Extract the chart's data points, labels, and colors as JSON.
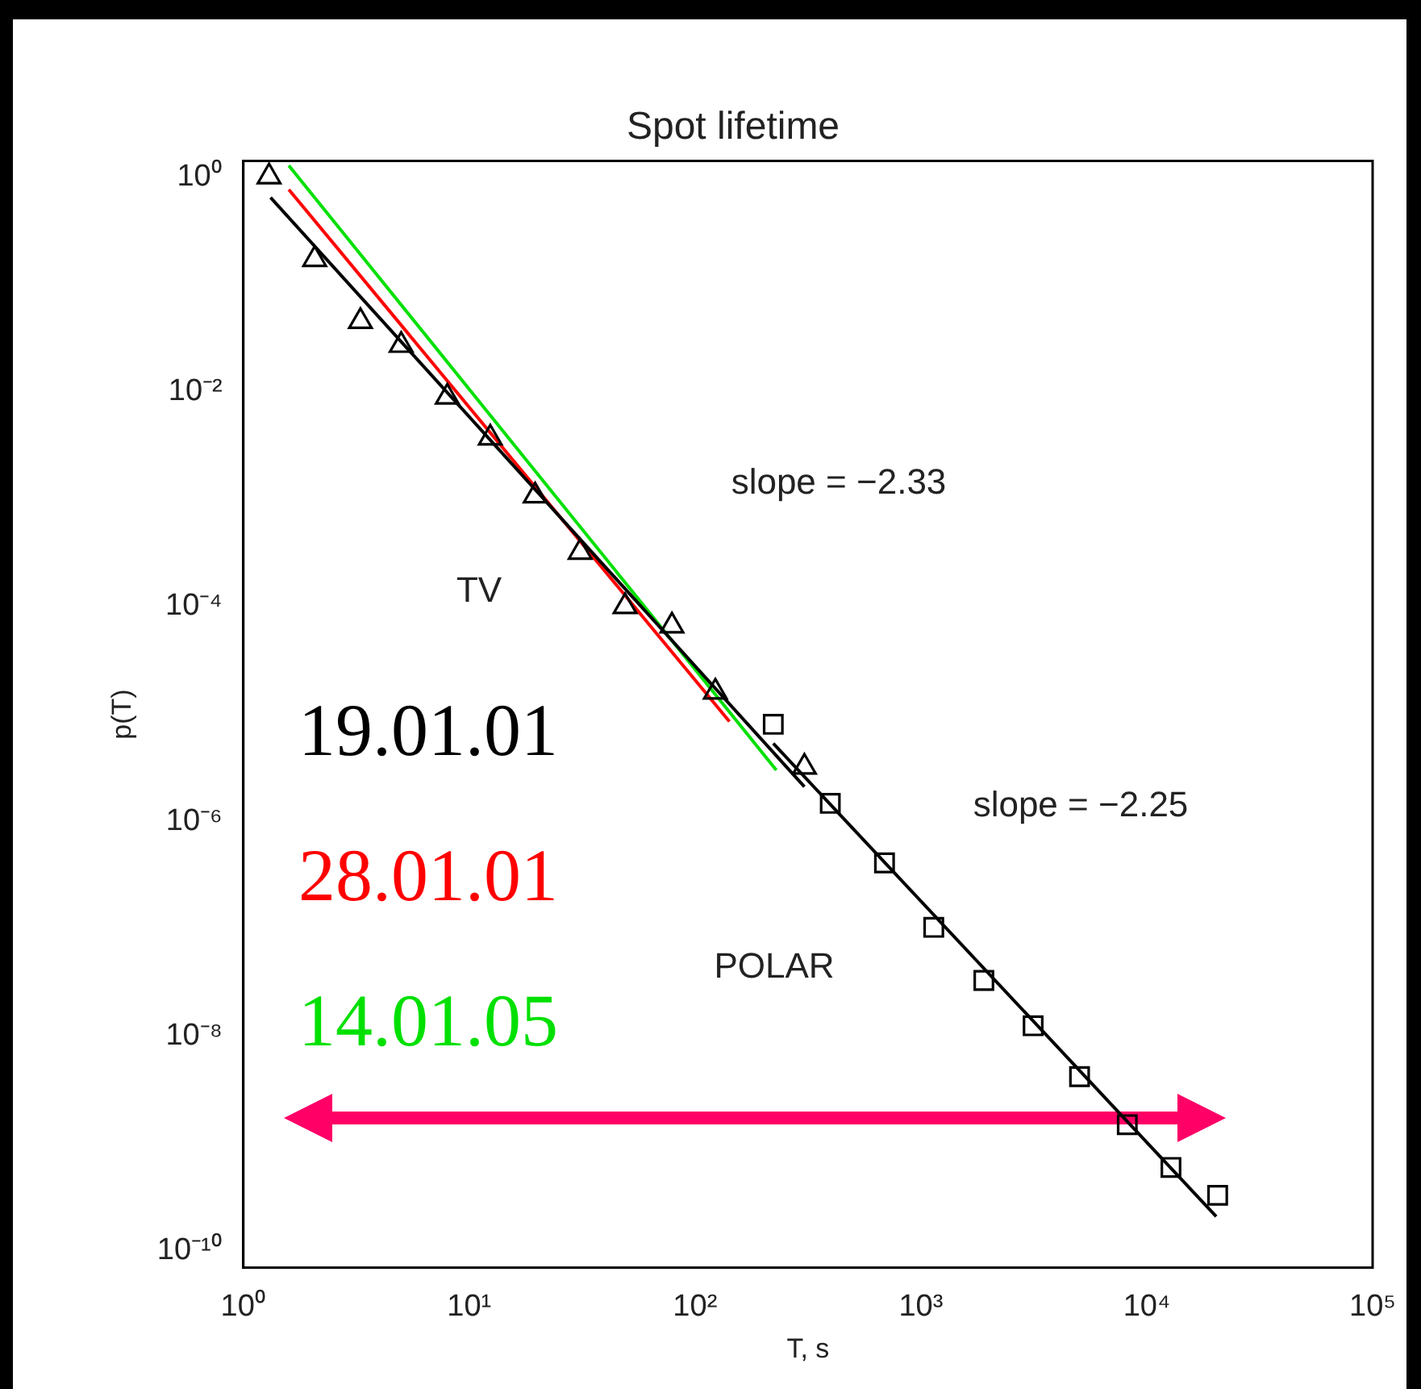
{
  "chart_data": {
    "type": "scatter",
    "title": "Spot lifetime",
    "xlabel": "T, s",
    "ylabel": "p(T)",
    "log": "xy",
    "grid": false,
    "legend": "left",
    "xlim": [
      1,
      100000
    ],
    "xticks": [
      {
        "value": 1,
        "label": "10⁰"
      },
      {
        "value": 10,
        "label": "10¹"
      },
      {
        "value": 100,
        "label": "10²"
      },
      {
        "value": 1000,
        "label": "10³"
      },
      {
        "value": 10000,
        "label": "10⁴"
      },
      {
        "value": 100000,
        "label": "10⁵"
      }
    ],
    "ylim": [
      7e-11,
      1.4
    ],
    "yticks": [
      {
        "value": 1,
        "label": "10⁰"
      },
      {
        "value": 0.01,
        "label": "10⁻²"
      },
      {
        "value": 0.0001,
        "label": "10⁻⁴"
      },
      {
        "value": 1e-06,
        "label": "10⁻⁶"
      },
      {
        "value": 1e-08,
        "label": "10⁻⁸"
      },
      {
        "value": 1e-10,
        "label": "10⁻¹⁰"
      }
    ],
    "series": [
      {
        "marker": "triangle",
        "color": "#000000",
        "x": [
          1.3,
          2.07,
          3.3,
          5.0,
          8.0,
          12.4,
          19.6,
          31,
          49,
          79,
          123,
          305
        ],
        "values": [
          1.0,
          0.17,
          0.045,
          0.027,
          0.0089,
          0.0037,
          0.00107,
          0.00032,
          0.0001,
          6.6e-05,
          1.6e-05,
          3.2e-06
        ]
      },
      {
        "marker": "square",
        "color": "#000000",
        "x": [
          222,
          397,
          690,
          1140,
          1900,
          3140,
          5040,
          8200,
          12800,
          20600
        ],
        "values": [
          8e-06,
          1.47e-06,
          4.1e-07,
          1.03e-07,
          3.3e-08,
          1.25e-08,
          4.2e-09,
          1.5e-09,
          6e-10,
          3.3e-10
        ]
      },
      {
        "type": "line",
        "marker": "none",
        "name": "19.01.01",
        "color": "#000000",
        "x": [
          1.32,
          305
        ],
        "values": [
          0.64,
          2.1e-06
        ]
      },
      {
        "type": "line",
        "marker": "none",
        "name": "28.01.01",
        "color": "#ff0000",
        "x": [
          1.59,
          142
        ],
        "values": [
          0.76,
          8.5e-06
        ]
      },
      {
        "type": "line",
        "marker": "none",
        "name": "14.01.05",
        "color": "#00e000",
        "x": [
          1.59,
          229
        ],
        "values": [
          1.27,
          3e-06
        ]
      },
      {
        "type": "line",
        "marker": "none",
        "color": "#000000",
        "x": [
          222,
          20300
        ],
        "values": [
          5.3e-06,
          2.1e-10
        ]
      }
    ],
    "annotations": [
      "TV",
      "POLAR",
      "slope = −2.33",
      "slope = −2.25"
    ]
  }
}
